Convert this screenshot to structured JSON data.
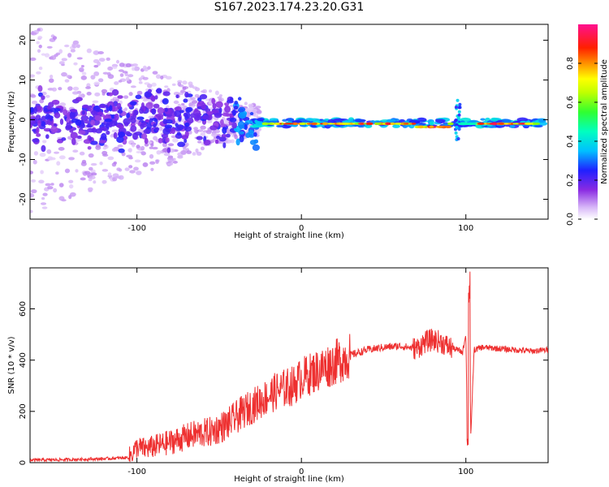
{
  "title": "S167.2023.174.23.20.G31",
  "chart_data": [
    {
      "type": "heatmap",
      "xlabel": "Height of straight line (km)",
      "ylabel": "Frequency (Hz)",
      "xlim": [
        -165,
        150
      ],
      "ylim": [
        -25,
        24
      ],
      "xticks": [
        "-100",
        "0",
        "100"
      ],
      "yticks": [
        "-20",
        "-10",
        "0",
        "10",
        "20"
      ],
      "colorbar": {
        "label": "Normalized spectral amplitude",
        "range": [
          0,
          1
        ],
        "ticks": [
          "0.0",
          "0.2",
          "0.4",
          "0.6",
          "0.8"
        ],
        "colormap": "rainbow"
      },
      "description_points": [
        {
          "x": -160,
          "y": 0,
          "amp": 0.12
        },
        {
          "x": -150,
          "y": 2,
          "amp": 0.1
        },
        {
          "x": -100,
          "y": 0,
          "amp": 0.25
        },
        {
          "x": -80,
          "y": -1,
          "amp": 0.3
        },
        {
          "x": -60,
          "y": 0,
          "amp": 0.3
        },
        {
          "x": -40,
          "y": 0,
          "amp": 0.4
        },
        {
          "x": -20,
          "y": -1,
          "amp": 0.85
        },
        {
          "x": 0,
          "y": -1,
          "amp": 0.8
        },
        {
          "x": 20,
          "y": -1,
          "amp": 0.9
        },
        {
          "x": 40,
          "y": -1,
          "amp": 0.9
        },
        {
          "x": 60,
          "y": -1,
          "amp": 0.85
        },
        {
          "x": 80,
          "y": -2,
          "amp": 0.85
        },
        {
          "x": 95,
          "y": -1,
          "amp": 0.6
        },
        {
          "x": 110,
          "y": -1,
          "amp": 0.9
        },
        {
          "x": 130,
          "y": -1,
          "amp": 0.9
        },
        {
          "x": 145,
          "y": -1,
          "amp": 0.5
        }
      ]
    },
    {
      "type": "line",
      "xlabel": "Height of straight line (km)",
      "ylabel": "SNR (10 * v/v)",
      "xlim": [
        -165,
        150
      ],
      "ylim": [
        0,
        760
      ],
      "xticks": [
        "-100",
        "0",
        "100"
      ],
      "yticks": [
        "0",
        "200",
        "400",
        "600"
      ],
      "color": "#ee3030",
      "x": [
        -165,
        -140,
        -120,
        -105,
        -100,
        -95,
        -85,
        -75,
        -65,
        -55,
        -45,
        -35,
        -25,
        -15,
        -5,
        0,
        10,
        20,
        30,
        40,
        50,
        60,
        70,
        75,
        80,
        85,
        90,
        95,
        98,
        100,
        101,
        102,
        103,
        105,
        110,
        120,
        130,
        140,
        150
      ],
      "y": [
        10,
        12,
        15,
        20,
        60,
        55,
        70,
        90,
        110,
        120,
        150,
        200,
        240,
        280,
        300,
        330,
        360,
        390,
        420,
        440,
        450,
        455,
        445,
        470,
        480,
        470,
        450,
        440,
        430,
        500,
        90,
        650,
        100,
        440,
        450,
        445,
        440,
        435,
        440
      ]
    }
  ]
}
